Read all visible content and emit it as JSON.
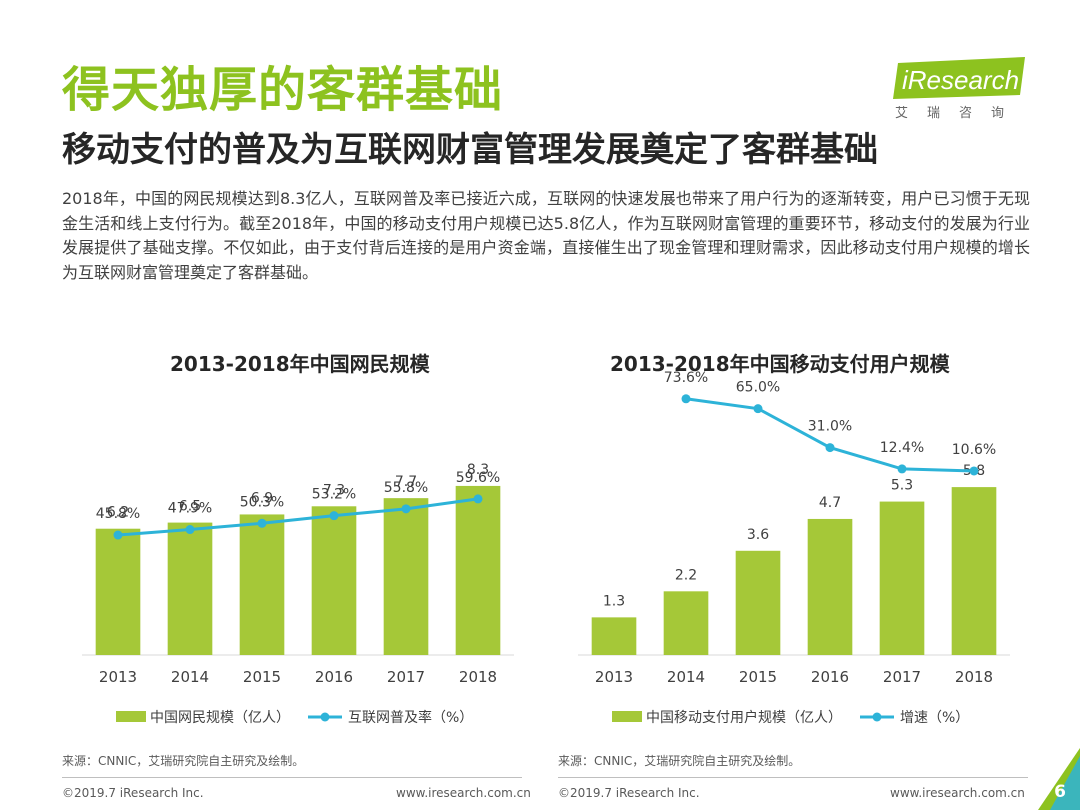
{
  "title": "得天独厚的客群基础",
  "subtitle": "移动支付的普及为互联网财富管理发展奠定了客群基础",
  "logo": {
    "brand": "iResearch",
    "tagline": "艾瑞咨询"
  },
  "body": "2018年，中国的网民规模达到8.3亿人，互联网普及率已接近六成，互联网的快速发展也带来了用户行为的逐渐转变，用户已习惯于无现金生活和线上支付行为。截至2018年，中国的移动支付用户规模已达5.8亿人，作为互联网财富管理的重要环节，移动支付的发展为行业发展提供了基础支撑。不仅如此，由于支付背后连接的是用户资金端，直接催生出了现金管理和理财需求，因此移动支付用户规模的增长为互联网财富管理奠定了客群基础。",
  "colors": {
    "bar": "#a5c838",
    "line": "#2db3d8",
    "title": "#8dc21f"
  },
  "chart_data": [
    {
      "type": "bar",
      "title": "2013-2018年中国网民规模",
      "categories": [
        "2013",
        "2014",
        "2015",
        "2016",
        "2017",
        "2018"
      ],
      "series": [
        {
          "name": "中国网民规模（亿人）",
          "kind": "bar",
          "values": [
            6.2,
            6.5,
            6.9,
            7.3,
            7.7,
            8.3
          ],
          "labels": [
            "6.2",
            "6.5",
            "6.9",
            "7.3",
            "7.7",
            "8.3"
          ]
        },
        {
          "name": "互联网普及率（%）",
          "kind": "line",
          "values": [
            45.8,
            47.9,
            50.3,
            53.2,
            55.8,
            59.6
          ],
          "labels": [
            "45.8%",
            "47.9%",
            "50.3%",
            "53.2%",
            "55.8%",
            "59.6%"
          ]
        }
      ],
      "ylim": [
        0,
        13.5
      ],
      "line_ylim": [
        0,
        105
      ],
      "source": "来源：CNNIC，艾瑞研究院自主研究及绘制。"
    },
    {
      "type": "bar",
      "title": "2013-2018年中国移动支付用户规模",
      "categories": [
        "2013",
        "2014",
        "2015",
        "2016",
        "2017",
        "2018"
      ],
      "series": [
        {
          "name": "中国移动支付用户规模（亿人）",
          "kind": "bar",
          "values": [
            1.3,
            2.2,
            3.6,
            4.7,
            5.3,
            5.8
          ],
          "labels": [
            "1.3",
            "2.2",
            "3.6",
            "4.7",
            "5.3",
            "5.8"
          ]
        },
        {
          "name": "增速（%）",
          "kind": "line",
          "values": [
            null,
            73.6,
            65.0,
            31.0,
            12.4,
            10.6
          ],
          "labels": [
            "",
            "73.6%",
            "65.0%",
            "31.0%",
            "12.4%",
            "10.6%"
          ]
        }
      ],
      "ylim": [
        0,
        9.5
      ],
      "line_ylim": [
        -150,
        90
      ],
      "source": "来源：CNNIC，艾瑞研究院自主研究及绘制。"
    }
  ],
  "footer": {
    "left1": "©2019.7 iResearch Inc.",
    "right1": "www.iresearch.com.cn",
    "left2": "©2019.7 iResearch Inc.",
    "right2": "www.iresearch.com.cn",
    "page": "6"
  }
}
